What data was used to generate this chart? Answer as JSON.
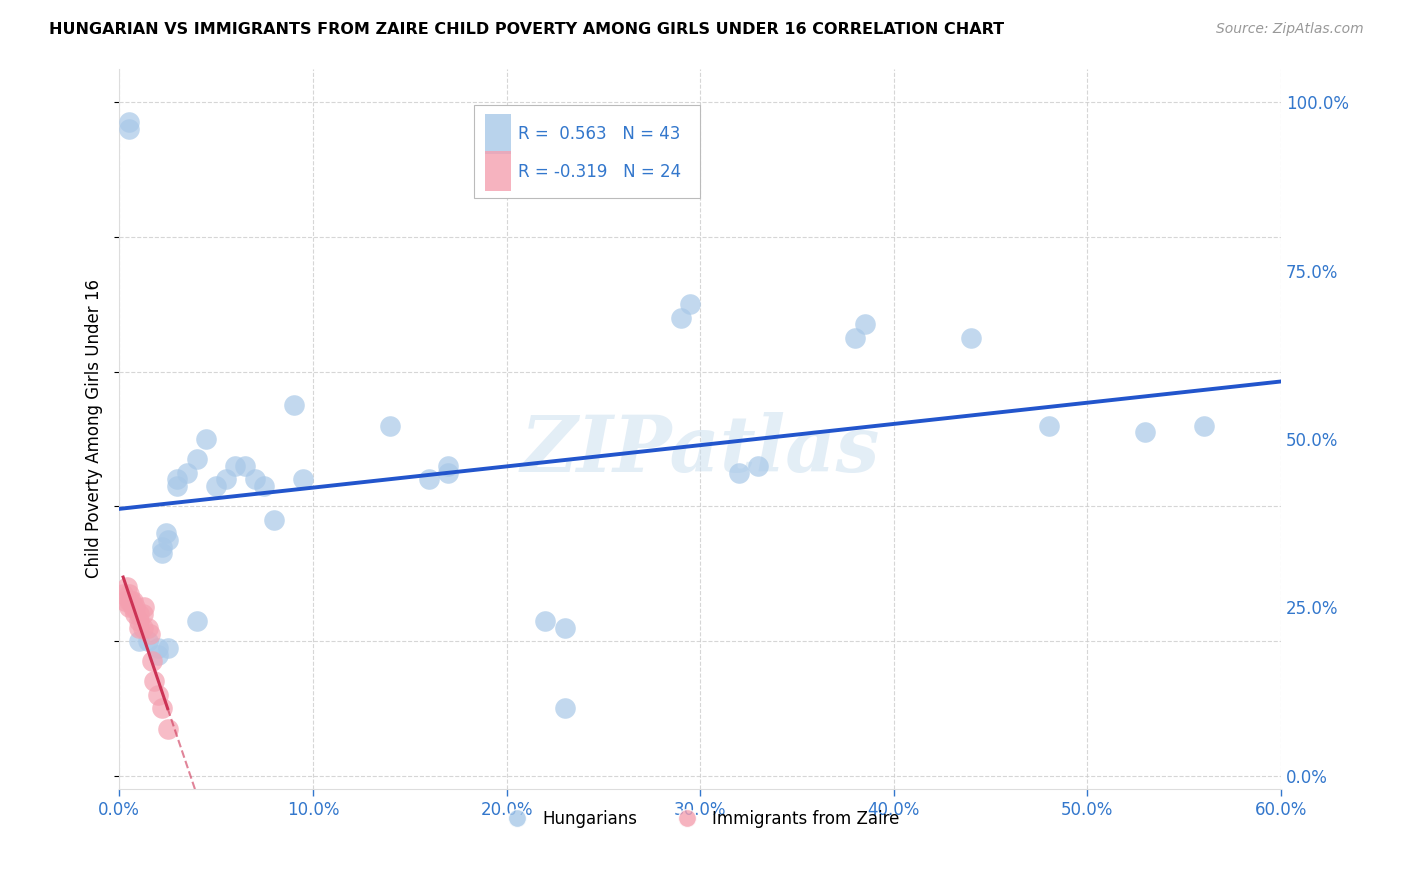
{
  "title": "HUNGARIAN VS IMMIGRANTS FROM ZAIRE CHILD POVERTY AMONG GIRLS UNDER 16 CORRELATION CHART",
  "source": "Source: ZipAtlas.com",
  "ylabel": "Child Poverty Among Girls Under 16",
  "x_tick_labels": [
    "0.0%",
    "10.0%",
    "20.0%",
    "30.0%",
    "40.0%",
    "50.0%",
    "60.0%"
  ],
  "y_tick_labels": [
    "0.0%",
    "25.0%",
    "50.0%",
    "75.0%",
    "100.0%"
  ],
  "xlim": [
    0,
    0.6
  ],
  "ylim": [
    -0.02,
    1.05
  ],
  "legend_label1": "Hungarians",
  "legend_label2": "Immigrants from Zaire",
  "R1": 0.563,
  "N1": 43,
  "R2": -0.319,
  "N2": 24,
  "blue_color": "#a8c8e8",
  "pink_color": "#f4a0b0",
  "line_blue": "#2255cc",
  "line_pink": "#cc3355",
  "watermark": "ZIPatlas",
  "blue_points_x": [
    0.005,
    0.005,
    0.01,
    0.015,
    0.02,
    0.02,
    0.022,
    0.022,
    0.024,
    0.025,
    0.025,
    0.03,
    0.03,
    0.035,
    0.04,
    0.04,
    0.045,
    0.05,
    0.055,
    0.06,
    0.065,
    0.07,
    0.075,
    0.08,
    0.09,
    0.095,
    0.14,
    0.16,
    0.17,
    0.17,
    0.22,
    0.23,
    0.23,
    0.29,
    0.295,
    0.32,
    0.33,
    0.38,
    0.385,
    0.44,
    0.48,
    0.53,
    0.56
  ],
  "blue_points_y": [
    0.96,
    0.97,
    0.2,
    0.2,
    0.19,
    0.18,
    0.34,
    0.33,
    0.36,
    0.35,
    0.19,
    0.44,
    0.43,
    0.45,
    0.47,
    0.23,
    0.5,
    0.43,
    0.44,
    0.46,
    0.46,
    0.44,
    0.43,
    0.38,
    0.55,
    0.44,
    0.52,
    0.44,
    0.46,
    0.45,
    0.23,
    0.22,
    0.1,
    0.68,
    0.7,
    0.45,
    0.46,
    0.65,
    0.67,
    0.65,
    0.52,
    0.51,
    0.52
  ],
  "pink_points_x": [
    0.002,
    0.003,
    0.004,
    0.005,
    0.005,
    0.005,
    0.006,
    0.007,
    0.007,
    0.008,
    0.008,
    0.01,
    0.01,
    0.01,
    0.012,
    0.012,
    0.013,
    0.015,
    0.016,
    0.017,
    0.018,
    0.02,
    0.022,
    0.025
  ],
  "pink_points_y": [
    0.27,
    0.26,
    0.28,
    0.26,
    0.27,
    0.25,
    0.26,
    0.25,
    0.26,
    0.25,
    0.24,
    0.24,
    0.23,
    0.22,
    0.24,
    0.22,
    0.25,
    0.22,
    0.21,
    0.17,
    0.14,
    0.12,
    0.1,
    0.07
  ]
}
